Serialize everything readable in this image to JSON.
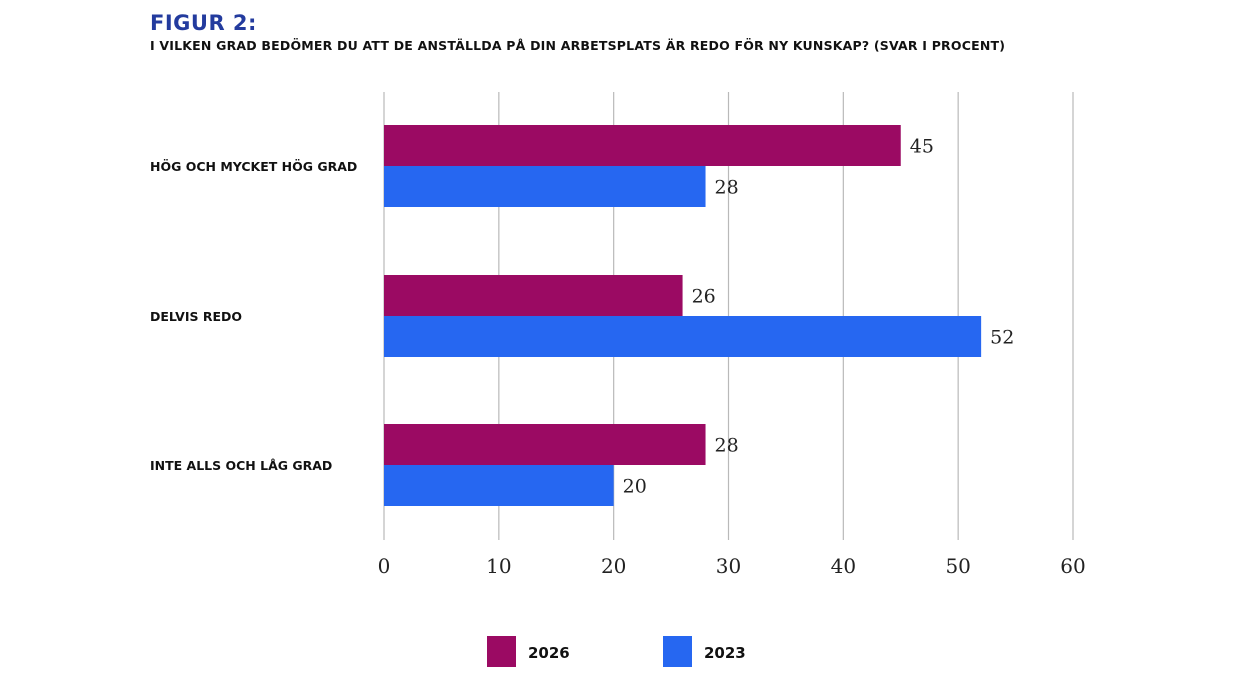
{
  "header": {
    "title": "FIGUR 2:",
    "subtitle": "I VILKEN GRAD BEDÖMER DU ATT DE ANSTÄLLDA PÅ DIN ARBETSPLATS ÄR REDO FÖR NY KUNSKAP? (SVAR I PROCENT)"
  },
  "chart_data": {
    "type": "bar",
    "orientation": "horizontal",
    "title": "FIGUR 2:",
    "subtitle": "I VILKEN GRAD BEDÖMER DU ATT DE ANSTÄLLDA PÅ DIN ARBETSPLATS ÄR REDO FÖR NY KUNSKAP? (SVAR I PROCENT)",
    "categories": [
      "HÖG OCH MYCKET HÖG GRAD",
      "DELVIS REDO",
      "INTE ALLS OCH LÅG GRAD"
    ],
    "series": [
      {
        "name": "2026",
        "color": "#9b0a63",
        "values": [
          45,
          26,
          28
        ]
      },
      {
        "name": "2023",
        "color": "#2667f1",
        "values": [
          28,
          52,
          20
        ]
      }
    ],
    "xlim": [
      0,
      60
    ],
    "xticks": [
      "0",
      "10",
      "20",
      "30",
      "40",
      "50",
      "60"
    ],
    "grid": true,
    "legend": "bottom-center",
    "data_labels": true
  }
}
